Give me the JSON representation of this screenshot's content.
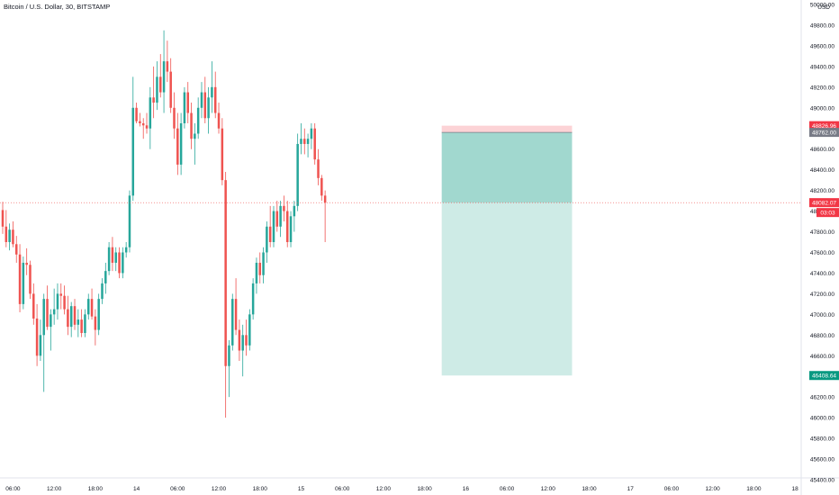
{
  "chart_data": {
    "type": "candlestick",
    "title": "Bitcoin / U.S. Dollar, 30, BITSTAMP",
    "currency_label": "USD",
    "ylim": [
      45400,
      50000
    ],
    "y_ticks": [
      50000,
      49800,
      49600,
      49400,
      49200,
      49000,
      48800,
      48600,
      48400,
      48200,
      48000,
      47800,
      47600,
      47400,
      47200,
      47000,
      46800,
      46600,
      46400,
      46200,
      46000,
      45800,
      45600,
      45400
    ],
    "y_tick_labels": [
      "50000.00",
      "49800.00",
      "49600.00",
      "49400.00",
      "49200.00",
      "49000.00",
      "48800.00",
      "48600.00",
      "48400.00",
      "48200.00",
      "48000.00",
      "47800.00",
      "47600.00",
      "47400.00",
      "47200.00",
      "47000.00",
      "46800.00",
      "46600.00",
      "46400.00",
      "46200.00",
      "46000.00",
      "45800.00",
      "45600.00",
      "45400.00"
    ],
    "x_tick_labels": [
      "06:00",
      "12:00",
      "18:00",
      "14",
      "06:00",
      "12:00",
      "18:00",
      "15",
      "06:00",
      "12:00",
      "18:00",
      "16",
      "06:00",
      "12:00",
      "18:00",
      "17",
      "06:00",
      "12:00",
      "18:00",
      "18"
    ],
    "x_tick_index": [
      3,
      15,
      27,
      39,
      51,
      63,
      75,
      87,
      99,
      111,
      123,
      135,
      147,
      159,
      171,
      183,
      195,
      207,
      219,
      231
    ],
    "candle_spacing_units": 1,
    "last_price": 48082.07,
    "last_price_label": "48082.07",
    "countdown_label": "03:03",
    "position": {
      "type": "short",
      "start_index": 128,
      "end_index": 166,
      "stop_loss": 48826.96,
      "stop_loss_label": "48826.96",
      "entry": 48762.0,
      "entry_label": "48762.00",
      "take_profit": 46408.64,
      "take_profit_label": "46408.64"
    },
    "candles": [
      [
        48010,
        48090,
        47780,
        47850
      ],
      [
        47850,
        48010,
        47650,
        47700
      ],
      [
        47700,
        47880,
        47620,
        47820
      ],
      [
        47820,
        47900,
        47650,
        47680
      ],
      [
        47680,
        47760,
        47500,
        47580
      ],
      [
        47580,
        47680,
        47020,
        47100
      ],
      [
        47100,
        47560,
        47050,
        47500
      ],
      [
        47500,
        47640,
        47380,
        47480
      ],
      [
        47480,
        47520,
        47150,
        47200
      ],
      [
        47200,
        47300,
        46900,
        46960
      ],
      [
        46960,
        47100,
        46500,
        46600
      ],
      [
        46600,
        46950,
        46550,
        46800
      ],
      [
        46800,
        47200,
        46250,
        47150
      ],
      [
        47150,
        47280,
        46850,
        46880
      ],
      [
        46880,
        47050,
        46650,
        47000
      ],
      [
        47000,
        47250,
        46900,
        47050
      ],
      [
        47050,
        47300,
        46950,
        47200
      ],
      [
        47200,
        47300,
        47050,
        47180
      ],
      [
        47180,
        47280,
        47000,
        47050
      ],
      [
        47050,
        47180,
        46800,
        46880
      ],
      [
        46880,
        47120,
        46780,
        47080
      ],
      [
        47080,
        47150,
        46850,
        46900
      ],
      [
        46900,
        47050,
        46780,
        46950
      ],
      [
        46950,
        47050,
        46780,
        46820
      ],
      [
        46820,
        47050,
        46780,
        47000
      ],
      [
        47000,
        47200,
        46950,
        47150
      ],
      [
        47150,
        47250,
        46950,
        46980
      ],
      [
        46980,
        47050,
        46700,
        46850
      ],
      [
        46850,
        47200,
        46800,
        47150
      ],
      [
        47150,
        47350,
        47100,
        47300
      ],
      [
        47300,
        47500,
        47200,
        47420
      ],
      [
        47420,
        47700,
        47380,
        47650
      ],
      [
        47650,
        47750,
        47420,
        47500
      ],
      [
        47500,
        47650,
        47420,
        47600
      ],
      [
        47600,
        47650,
        47350,
        47400
      ],
      [
        47400,
        47650,
        47350,
        47600
      ],
      [
        47600,
        47700,
        47550,
        47650
      ],
      [
        47650,
        48200,
        47600,
        48150
      ],
      [
        48150,
        49300,
        48100,
        49000
      ],
      [
        49000,
        49050,
        48850,
        48870
      ],
      [
        48870,
        48950,
        48820,
        48850
      ],
      [
        48850,
        48900,
        48700,
        48830
      ],
      [
        48830,
        48950,
        48750,
        48800
      ],
      [
        48800,
        49200,
        48600,
        49100
      ],
      [
        49100,
        49400,
        48900,
        49050
      ],
      [
        49050,
        49450,
        48980,
        49300
      ],
      [
        49300,
        49520,
        49100,
        49150
      ],
      [
        49150,
        49750,
        48950,
        49450
      ],
      [
        49450,
        49650,
        49250,
        49350
      ],
      [
        49350,
        49480,
        48950,
        49000
      ],
      [
        49000,
        49150,
        48700,
        48800
      ],
      [
        48800,
        48950,
        48350,
        48450
      ],
      [
        48450,
        48950,
        48350,
        48850
      ],
      [
        48850,
        49200,
        48800,
        49150
      ],
      [
        49150,
        49250,
        48850,
        48950
      ],
      [
        48950,
        49050,
        48600,
        48700
      ],
      [
        48700,
        48850,
        48450,
        48750
      ],
      [
        48750,
        49100,
        48700,
        49000
      ],
      [
        49000,
        49250,
        48900,
        49150
      ],
      [
        49150,
        49300,
        48850,
        48900
      ],
      [
        48900,
        49200,
        48750,
        49100
      ],
      [
        49100,
        49450,
        48950,
        49200
      ],
      [
        49200,
        49350,
        48900,
        48950
      ],
      [
        48950,
        49050,
        48750,
        48800
      ],
      [
        48800,
        48900,
        48250,
        48300
      ],
      [
        48300,
        48380,
        46000,
        46500
      ],
      [
        46500,
        46750,
        46200,
        46700
      ],
      [
        46700,
        47200,
        46650,
        47150
      ],
      [
        47150,
        47350,
        46800,
        46850
      ],
      [
        46850,
        46950,
        46550,
        46650
      ],
      [
        46650,
        46900,
        46400,
        46800
      ],
      [
        46800,
        46950,
        46600,
        46700
      ],
      [
        46700,
        47050,
        46650,
        47000
      ],
      [
        47000,
        47350,
        46950,
        47300
      ],
      [
        47300,
        47550,
        47200,
        47500
      ],
      [
        47500,
        47600,
        47300,
        47380
      ],
      [
        47380,
        47650,
        47300,
        47600
      ],
      [
        47600,
        47900,
        47500,
        47850
      ],
      [
        47850,
        48050,
        47650,
        47700
      ],
      [
        47700,
        48050,
        47650,
        48000
      ],
      [
        48000,
        48100,
        47800,
        47850
      ],
      [
        47850,
        48100,
        47750,
        48050
      ],
      [
        48050,
        48150,
        47900,
        48000
      ],
      [
        48000,
        48100,
        47650,
        47700
      ],
      [
        47700,
        48000,
        47650,
        47950
      ],
      [
        47950,
        48100,
        47800,
        48050
      ],
      [
        48050,
        48750,
        48000,
        48650
      ],
      [
        48650,
        48850,
        48550,
        48700
      ],
      [
        48700,
        48800,
        48550,
        48650
      ],
      [
        48650,
        48750,
        48520,
        48700
      ],
      [
        48700,
        48850,
        48600,
        48800
      ],
      [
        48800,
        48850,
        48450,
        48500
      ],
      [
        48500,
        48600,
        48250,
        48320
      ],
      [
        48320,
        48350,
        48100,
        48150
      ],
      [
        48150,
        48200,
        47700,
        48082.07
      ]
    ]
  }
}
